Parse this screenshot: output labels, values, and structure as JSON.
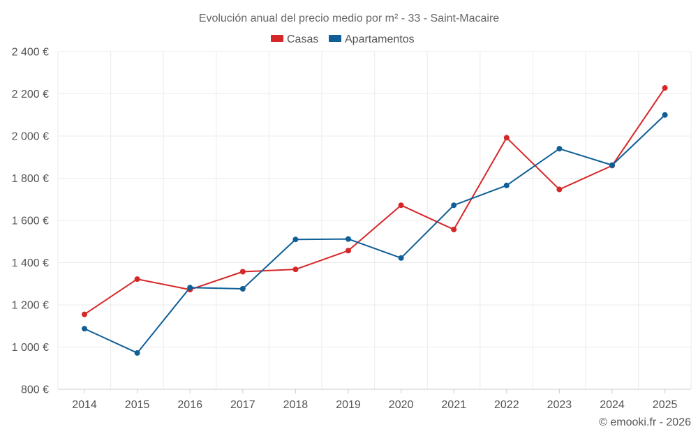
{
  "chart_data": {
    "type": "line",
    "title": "Evolución anual del precio medio por m² - 33 - Saint-Macaire",
    "categories": [
      "2014",
      "2015",
      "2016",
      "2017",
      "2018",
      "2019",
      "2020",
      "2021",
      "2022",
      "2023",
      "2024",
      "2025"
    ],
    "series": [
      {
        "name": "Casas",
        "color": "#d62728",
        "values": [
          1155,
          1322,
          1272,
          1357,
          1368,
          1457,
          1672,
          1557,
          1992,
          1747,
          1860,
          2228
        ]
      },
      {
        "name": "Apartamentos",
        "color": "#0f5f96",
        "values": [
          1087,
          972,
          1282,
          1276,
          1510,
          1512,
          1422,
          1672,
          1766,
          1940,
          1862,
          2100
        ]
      }
    ],
    "ylim": [
      800,
      2400
    ],
    "yticks": [
      800,
      1000,
      1200,
      1400,
      1600,
      1800,
      2000,
      2200,
      2400
    ],
    "ytick_labels": [
      "800 €",
      "1 000 €",
      "1 200 €",
      "1 400 €",
      "1 600 €",
      "1 800 €",
      "2 000 €",
      "2 200 €",
      "2 400 €"
    ],
    "xlabel": "",
    "ylabel": "",
    "grid": true,
    "legend_position": "top-center"
  },
  "credit": "© emooki.fr - 2026"
}
